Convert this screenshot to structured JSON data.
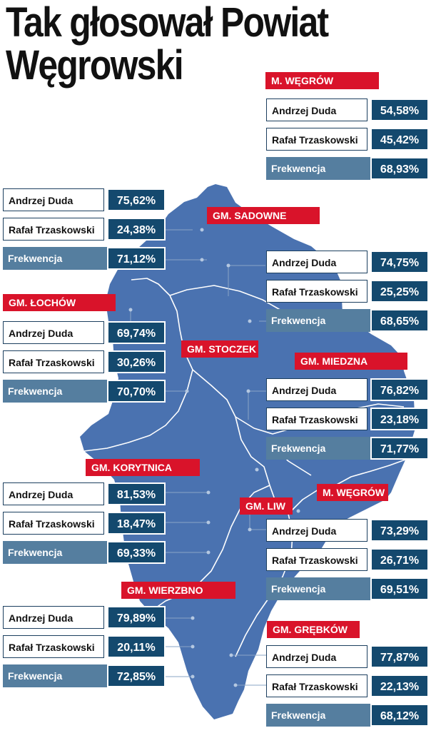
{
  "title_line1": "Tak głosował Powiat",
  "title_line2": "Węgrowski",
  "colors": {
    "map_fill": "#4a72b0",
    "border": "#ffffff",
    "label_bg": "#d9132a",
    "value_bg": "#14496e",
    "turnout_bg": "#557e9f"
  },
  "regions": [
    {
      "name": "M. WĘGRÓW",
      "duda_label": "Andrzej Duda",
      "duda": "54,58%",
      "trzaskowski_label": "Rafał Trzaskowski",
      "trzaskowski": "45,42%",
      "turnout_label": "Frekwencja",
      "turnout": "68,93%"
    },
    {
      "name": "GM. SADOWNE",
      "duda_label": "Andrzej Duda",
      "duda": "75,62%",
      "trzaskowski_label": "Rafał Trzaskowski",
      "trzaskowski": "24,38%",
      "turnout_label": "Frekwencja",
      "turnout": "71,12%"
    },
    {
      "name": "GM. STOCZEK",
      "duda_label": "Andrzej Duda",
      "duda": "74,75%",
      "trzaskowski_label": "Rafał Trzaskowski",
      "trzaskowski": "25,25%",
      "turnout_label": "Frekwencja",
      "turnout": "68,65%"
    },
    {
      "name": "GM. ŁOCHÓW",
      "duda_label": "Andrzej Duda",
      "duda": "69,74%",
      "trzaskowski_label": "Rafał Trzaskowski",
      "trzaskowski": "30,26%",
      "turnout_label": "Frekwencja",
      "turnout": "70,70%"
    },
    {
      "name": "GM. MIEDZNA",
      "duda_label": "Andrzej Duda",
      "duda": "76,82%",
      "trzaskowski_label": "Rafał Trzaskowski",
      "trzaskowski": "23,18%",
      "turnout_label": "Frekwencja",
      "turnout": "71,77%"
    },
    {
      "name": "GM. KORYTNICA",
      "duda_label": "Andrzej Duda",
      "duda": "81,53%",
      "trzaskowski_label": "Rafał Trzaskowski",
      "trzaskowski": "18,47%",
      "turnout_label": "Frekwencja",
      "turnout": "69,33%"
    },
    {
      "name": "GM. LIW",
      "duda_label": "Andrzej Duda",
      "duda": "73,29%",
      "trzaskowski_label": "Rafał Trzaskowski",
      "trzaskowski": "26,71%",
      "turnout_label": "Frekwencja",
      "turnout": "69,51%"
    },
    {
      "name": "M. WĘGRÓW",
      "duda_label": "",
      "duda": "",
      "trzaskowski_label": "",
      "trzaskowski": "",
      "turnout_label": "",
      "turnout": ""
    },
    {
      "name": "GM. WIERZBNO",
      "duda_label": "Andrzej Duda",
      "duda": "79,89%",
      "trzaskowski_label": "Rafał Trzaskowski",
      "trzaskowski": "20,11%",
      "turnout_label": "Frekwencja",
      "turnout": "72,85%"
    },
    {
      "name": "GM. GRĘBKÓW",
      "duda_label": "Andrzej Duda",
      "duda": "77,87%",
      "trzaskowski_label": "Rafał Trzaskowski",
      "trzaskowski": "22,13%",
      "turnout_label": "Frekwencja",
      "turnout": "68,12%"
    }
  ]
}
